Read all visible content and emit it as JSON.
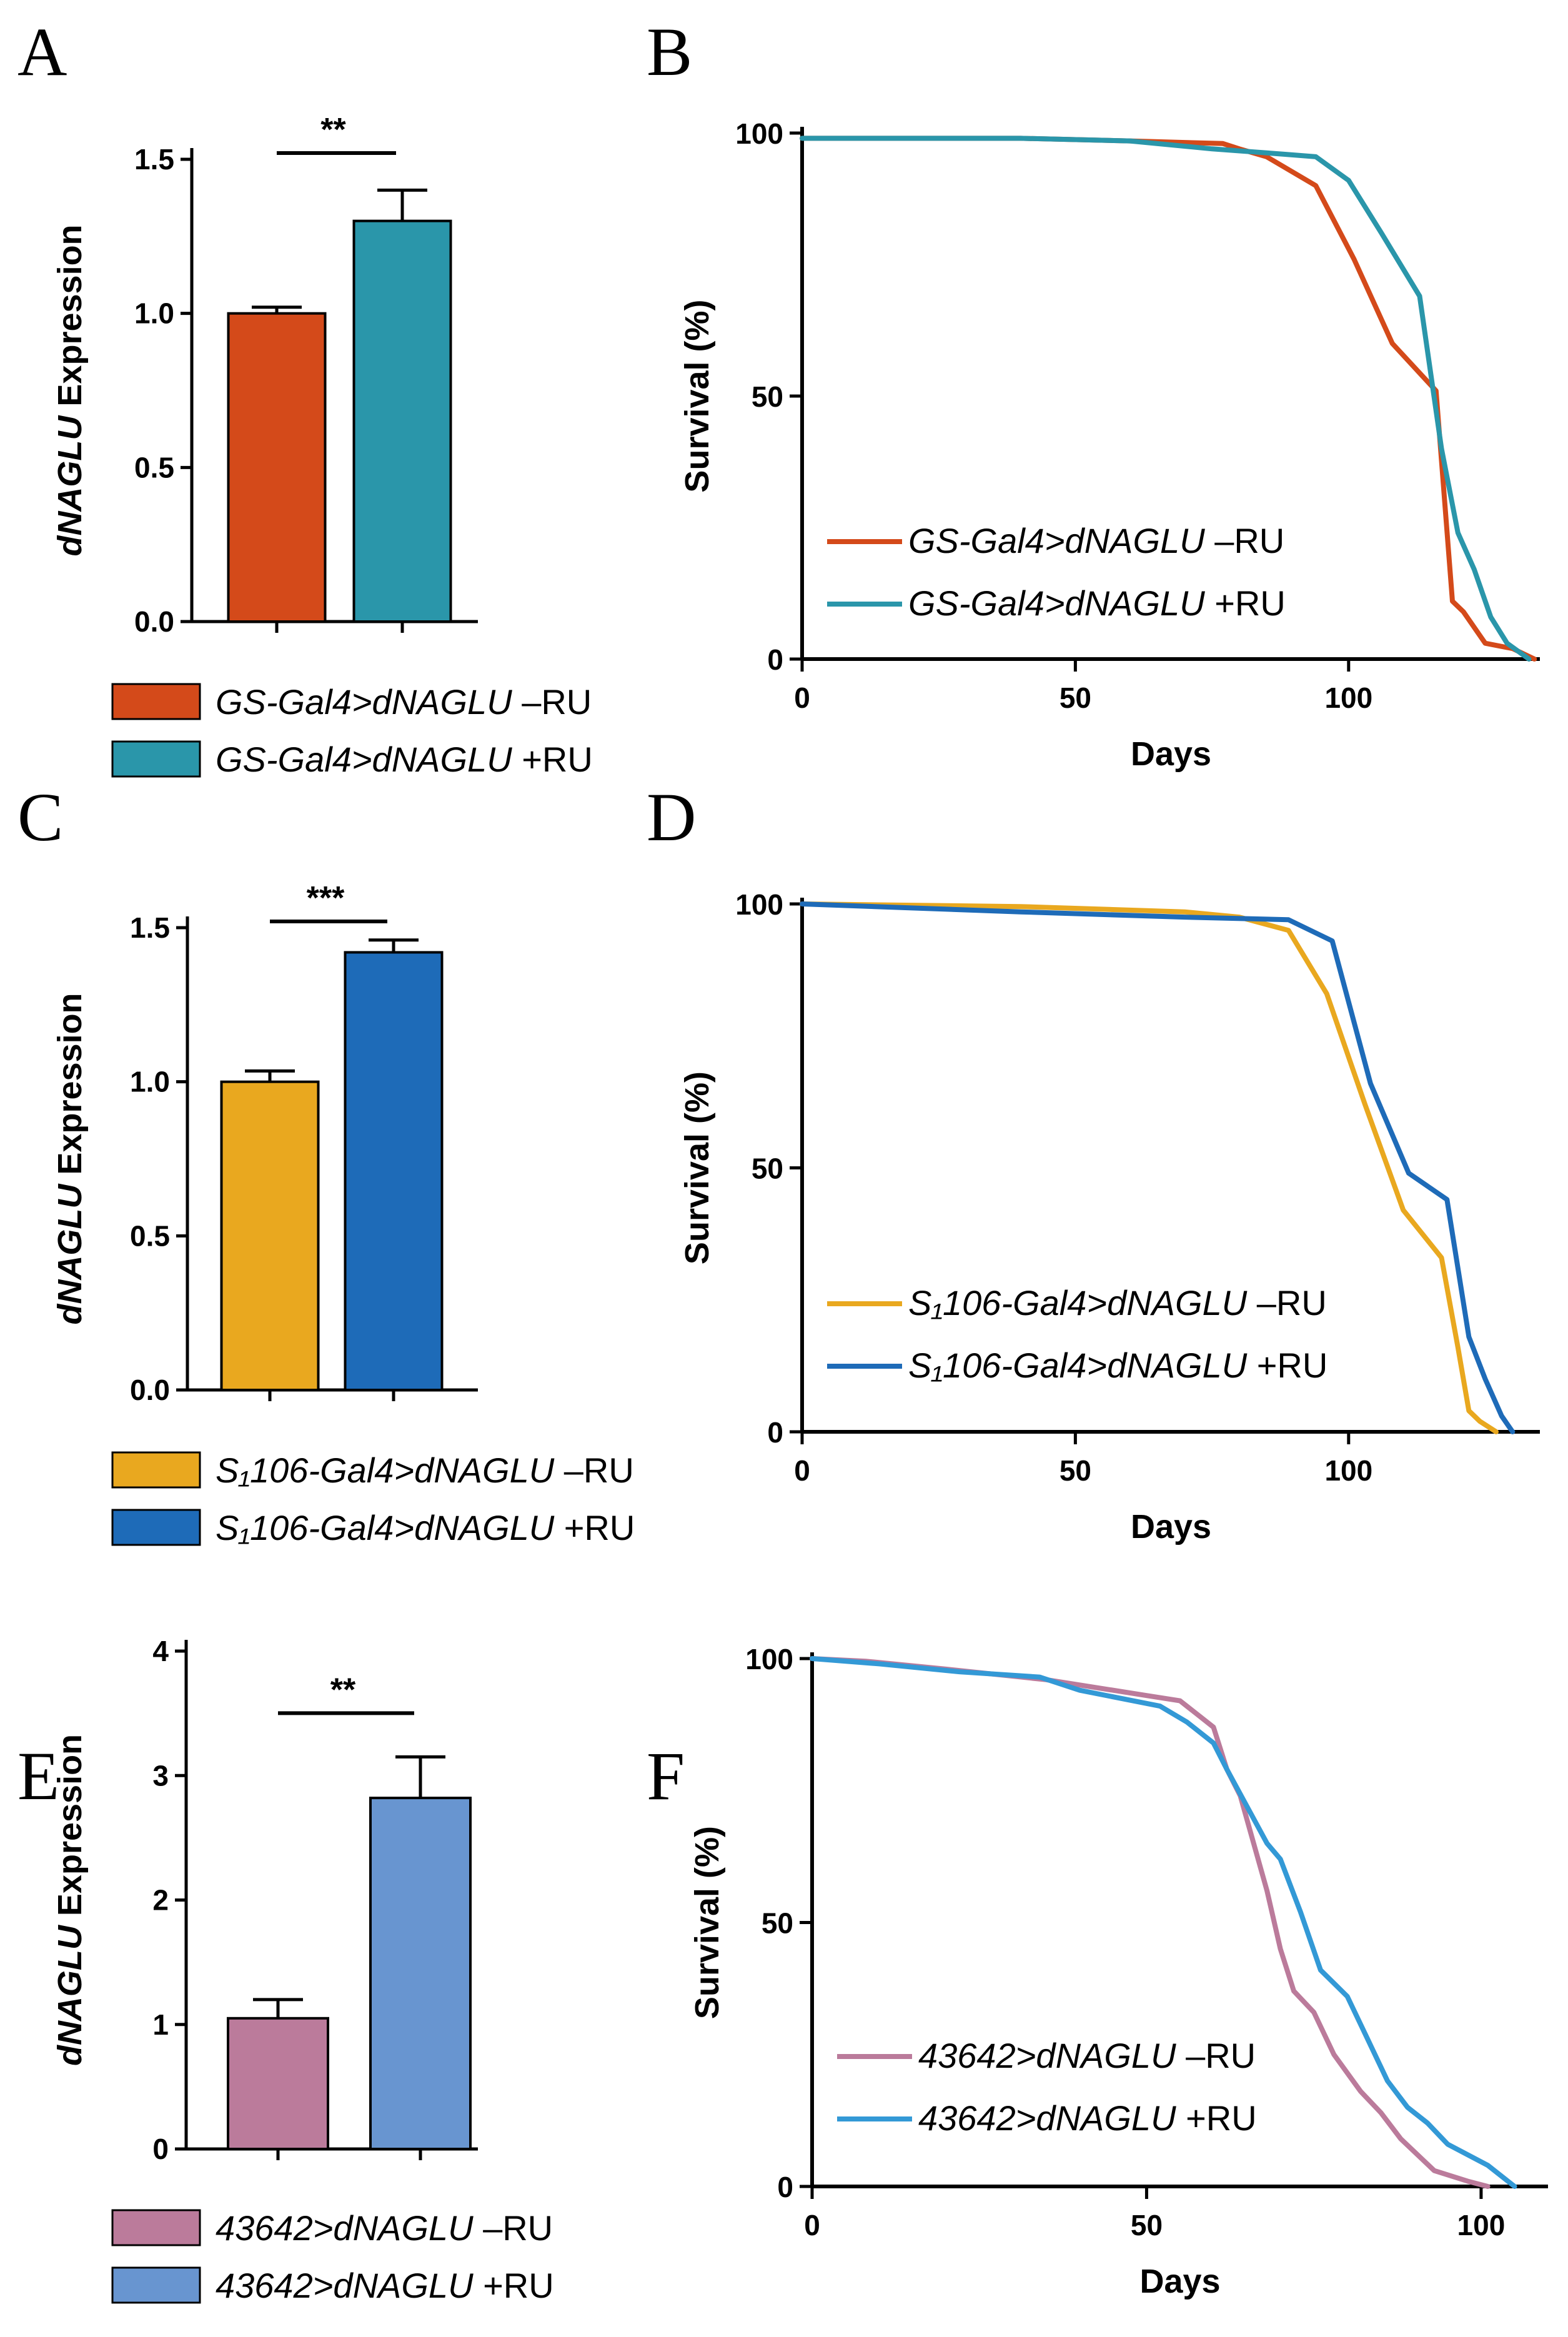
{
  "chart_data": [
    {
      "id": "A",
      "panel": "A",
      "type": "bar",
      "ylabel_italic": "dNAGLU",
      "ylabel_rest": "Expression",
      "ylim": [
        0,
        1.5
      ],
      "yticks": [
        "0.0",
        "0.5",
        "1.0",
        "1.5"
      ],
      "bars": [
        {
          "value": 1.0,
          "error": 0.02,
          "color": "#D44A1A",
          "legend_italic": "GS-Gal4>dNAGLU",
          "legend_rest": "–RU"
        },
        {
          "value": 1.3,
          "error": 0.1,
          "color": "#2A96AA",
          "legend_italic": "GS-Gal4>dNAGLU",
          "legend_rest": "+RU"
        }
      ],
      "significance": "**"
    },
    {
      "id": "B",
      "panel": "B",
      "type": "line",
      "ylabel": "Survival (%)",
      "xlabel": "Days",
      "xlim": [
        0,
        135
      ],
      "ylim": [
        0,
        100
      ],
      "xticks": [
        "0",
        "50",
        "100"
      ],
      "yticks": [
        "0",
        "50",
        "100"
      ],
      "series": [
        {
          "legend_italic": "GS-Gal4>dNAGLU",
          "legend_rest": "–RU",
          "color": "#D44A1A",
          "x": [
            0,
            20,
            40,
            60,
            77,
            80,
            85,
            94,
            101,
            108,
            116,
            119,
            121,
            125,
            130,
            134
          ],
          "y": [
            99,
            99,
            99,
            98.5,
            98,
            97,
            95.5,
            90,
            76,
            60,
            51,
            11,
            9,
            3,
            2,
            0
          ]
        },
        {
          "legend_italic": "GS-Gal4>dNAGLU",
          "legend_rest": "+RU",
          "color": "#2A96AA",
          "x": [
            0,
            20,
            40,
            60,
            75,
            88,
            94,
            100,
            106,
            113,
            117,
            120,
            123,
            126,
            129,
            133
          ],
          "y": [
            99,
            99,
            99,
            98.5,
            97,
            96,
            95.5,
            91,
            81,
            69,
            40,
            24,
            17,
            8,
            3,
            0
          ]
        }
      ]
    },
    {
      "id": "C",
      "panel": "C",
      "type": "bar",
      "ylabel_italic": "dNAGLU",
      "ylabel_rest": "Expression",
      "ylim": [
        0,
        1.5
      ],
      "yticks": [
        "0.0",
        "0.5",
        "1.0",
        "1.5"
      ],
      "bars": [
        {
          "value": 1.0,
          "error": 0.035,
          "color": "#E9A81F",
          "legend_italic": "S₁106-Gal4>dNAGLU",
          "legend_rest": "–RU"
        },
        {
          "value": 1.42,
          "error": 0.04,
          "color": "#1E6BB8",
          "legend_italic": "S₁106-Gal4>dNAGLU",
          "legend_rest": "+RU"
        }
      ],
      "significance": "***"
    },
    {
      "id": "D",
      "panel": "D",
      "type": "line",
      "ylabel": "Survival (%)",
      "xlabel": "Days",
      "xlim": [
        0,
        135
      ],
      "ylim": [
        0,
        100
      ],
      "xticks": [
        "0",
        "50",
        "100"
      ],
      "yticks": [
        "0",
        "50",
        "100"
      ],
      "series": [
        {
          "legend_italic": "S₁106-Gal4>dNAGLU",
          "legend_rest": "–RU",
          "color": "#E9A81F",
          "x": [
            0,
            40,
            70,
            80,
            89,
            96,
            103,
            110,
            117,
            120,
            122,
            124,
            127
          ],
          "y": [
            100,
            99.5,
            98.5,
            97.5,
            95,
            83,
            62,
            42,
            33,
            16,
            4,
            2,
            0
          ]
        },
        {
          "legend_italic": "S₁106-Gal4>dNAGLU",
          "legend_rest": "+RU",
          "color": "#1E6BB8",
          "x": [
            0,
            40,
            70,
            89,
            97,
            104,
            111,
            118,
            122,
            125,
            128,
            130
          ],
          "y": [
            100,
            98.5,
            97.5,
            97,
            93,
            66,
            49,
            44,
            18,
            10,
            3,
            0
          ]
        }
      ]
    },
    {
      "id": "E",
      "panel": "E",
      "type": "bar",
      "ylabel_italic": "dNAGLU",
      "ylabel_rest": "Expression",
      "ylim": [
        0,
        4
      ],
      "yticks": [
        "0",
        "1",
        "2",
        "3",
        "4"
      ],
      "bars": [
        {
          "value": 1.05,
          "error": 0.15,
          "color": "#BB7B9B",
          "legend_italic": "43642>dNAGLU",
          "legend_rest": "–RU"
        },
        {
          "value": 2.82,
          "error": 0.33,
          "color": "#6895D0",
          "legend_italic": "43642>dNAGLU",
          "legend_rest": "+RU"
        }
      ],
      "significance": "**"
    },
    {
      "id": "F",
      "panel": "F",
      "type": "line",
      "ylabel": "Survival (%)",
      "xlabel": "Days",
      "xlim": [
        0,
        110
      ],
      "ylim": [
        0,
        100
      ],
      "xticks": [
        "0",
        "50",
        "100"
      ],
      "yticks": [
        "0",
        "50",
        "100"
      ],
      "series": [
        {
          "legend_italic": "43642>dNAGLU",
          "legend_rest": "–RU",
          "color": "#BB7B9B",
          "x": [
            0,
            8,
            20,
            35,
            50,
            55,
            58,
            60,
            62,
            64,
            66,
            68,
            70,
            72,
            75,
            78,
            82,
            85,
            88,
            93,
            98,
            101
          ],
          "y": [
            100,
            99.5,
            98,
            96,
            93,
            92,
            89,
            87,
            79,
            74,
            65,
            56,
            45,
            37,
            33,
            25,
            18,
            14,
            9,
            3,
            1,
            0
          ]
        },
        {
          "legend_italic": "43642>dNAGLU",
          "legend_rest": "+RU",
          "color": "#3399D6",
          "x": [
            0,
            10,
            22,
            34,
            40,
            52,
            56,
            60,
            62,
            65,
            68,
            70,
            73,
            76,
            80,
            83,
            86,
            89,
            92,
            95,
            98,
            101,
            105
          ],
          "y": [
            100,
            99,
            97.5,
            96.5,
            94,
            91,
            88,
            84,
            79,
            72,
            65,
            62,
            52,
            41,
            36,
            28,
            20,
            15,
            12,
            8,
            6,
            4,
            0
          ]
        }
      ]
    }
  ]
}
